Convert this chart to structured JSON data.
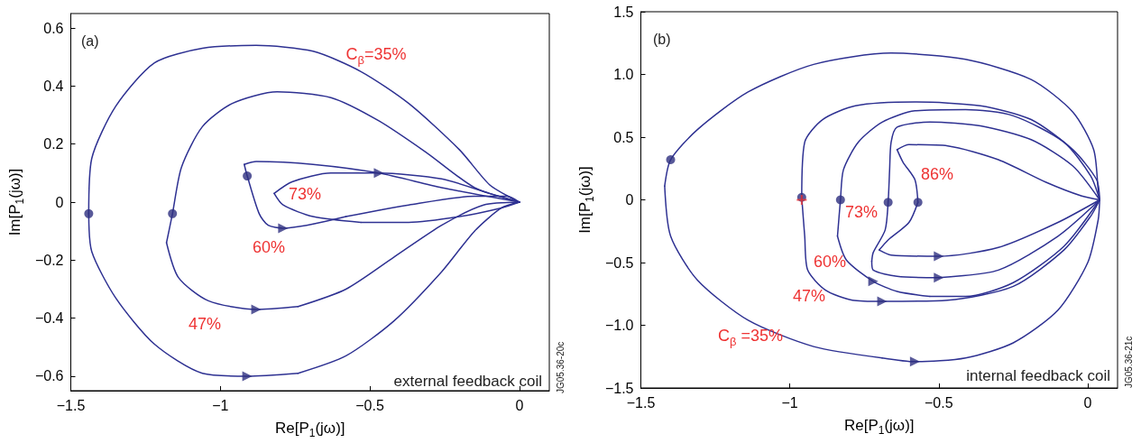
{
  "chart_data": [
    {
      "type": "line",
      "xlabel": "Re[P$_{1}$(jω)]",
      "ylabel": "Im[P$_{1}$(jω)]",
      "xlim": [
        -1.5,
        0.1
      ],
      "xticks": [
        {
          "value": -1.5,
          "label": "−1.5"
        },
        {
          "value": -1,
          "label": "−1"
        },
        {
          "value": -0.5,
          "label": "−0.5"
        },
        0
      ],
      "ylim": [
        -0.65,
        0.65
      ],
      "yticks": [
        {
          "value": -0.6,
          "label": "−0.6"
        },
        {
          "value": -0.4,
          "label": "−0.4"
        },
        {
          "value": -0.2,
          "label": "−0.2"
        },
        0,
        0.2,
        0.4,
        0.6
      ],
      "series": [
        {
          "color": "#2e3192",
          "x": [
            -1.44,
            -1.43,
            -1.35,
            -1.22,
            -1.06,
            -0.91,
            -0.74
          ],
          "values": [
            -0.04,
            -0.17,
            -0.33,
            -0.49,
            -0.59,
            -0.6,
            -0.59
          ]
        },
        {
          "color": "#2e3192",
          "x": [
            -0.74,
            -0.58,
            -0.42,
            -0.26,
            -0.15,
            -0.06,
            0
          ],
          "values": [
            -0.59,
            -0.53,
            -0.41,
            -0.24,
            -0.1,
            -0.02,
            0
          ]
        },
        {
          "color": "#2e3192",
          "x": [
            -1.44,
            -1.43,
            -1.35,
            -1.22,
            -1.06,
            -0.88,
            -0.69,
            -0.53,
            -0.37,
            -0.2,
            -0.1,
            -0.02,
            0
          ],
          "values": [
            -0.04,
            0.15,
            0.33,
            0.48,
            0.53,
            0.54,
            0.52,
            0.45,
            0.34,
            0.18,
            0.06,
            0.01,
            0
          ]
        },
        {
          "color": "#2e3192",
          "x": [
            -1.18,
            -1.16,
            -1.13,
            -1.06,
            -0.96,
            -0.81,
            -0.63,
            -0.47,
            -0.31,
            -0.15,
            0
          ],
          "values": [
            -0.14,
            -0.04,
            0.12,
            0.26,
            0.34,
            0.38,
            0.36,
            0.28,
            0.17,
            0.05,
            0
          ]
        },
        {
          "color": "#2e3192",
          "x": [
            -1.18,
            -1.14,
            -1.04,
            -0.88,
            -0.74
          ],
          "values": [
            -0.14,
            -0.26,
            -0.34,
            -0.37,
            -0.36
          ]
        },
        {
          "color": "#2e3192",
          "x": [
            -0.74,
            -0.58,
            -0.42,
            -0.26,
            -0.12,
            0
          ],
          "values": [
            -0.36,
            -0.3,
            -0.19,
            -0.08,
            -0.01,
            0
          ]
        },
        {
          "color": "#2e3192",
          "x": [
            -0.92,
            -0.91,
            -0.87,
            -0.84,
            -0.79,
            -0.58
          ],
          "values": [
            0.13,
            0.09,
            -0.04,
            -0.08,
            -0.09,
            -0.05
          ]
        },
        {
          "color": "#2e3192",
          "x": [
            -0.58,
            -0.37,
            -0.15,
            -0.04,
            0
          ],
          "values": [
            -0.05,
            -0.01,
            0.02,
            0.02,
            0
          ]
        },
        {
          "color": "#2e3192",
          "x": [
            -0.92,
            -0.88,
            -0.69,
            -0.47,
            -0.26,
            0
          ],
          "values": [
            0.13,
            0.14,
            0.13,
            0.1,
            0.05,
            0
          ]
        },
        {
          "color": "#2e3192",
          "x": [
            -0.82,
            -0.79,
            -0.69,
            -0.53
          ],
          "values": [
            0.03,
            -0.01,
            -0.05,
            -0.07
          ]
        },
        {
          "color": "#2e3192",
          "x": [
            -0.53,
            -0.37,
            -0.2,
            -0.06,
            0
          ],
          "values": [
            -0.07,
            -0.07,
            -0.05,
            -0.02,
            0
          ]
        },
        {
          "color": "#2e3192",
          "x": [
            -0.82,
            -0.76,
            -0.63,
            -0.47,
            -0.26,
            -0.1,
            0
          ],
          "values": [
            0.03,
            0.07,
            0.1,
            0.1,
            0.08,
            0.03,
            0
          ]
        },
        {
          "type": "scatter",
          "marker": "circle",
          "color": "#2e3080",
          "x": [
            -1.44,
            -1.16,
            -0.91
          ],
          "values": [
            -0.04,
            -0.04,
            0.09
          ]
        },
        {
          "type": "scatter",
          "marker": "triangle",
          "color": "#2e3080",
          "x": [
            -0.91,
            -0.88,
            -0.79,
            -0.47
          ],
          "values": [
            -0.6,
            -0.37,
            -0.09,
            0.1
          ]
        }
      ],
      "annotations": [
        "(a)",
        "external feedback coil",
        "JG05.36-20c",
        "C$_{β}$=35%",
        "73%",
        "60%",
        "47%"
      ]
    },
    {
      "type": "line",
      "xlabel": "Re[P$_{1}$(jω)]",
      "ylabel": "Im[P$_{1}$(jω)]",
      "xlim": [
        -1.5,
        0.1
      ],
      "xticks": [
        {
          "value": -1.5,
          "label": "−1.5"
        },
        {
          "value": -1,
          "label": "−1"
        },
        {
          "value": -0.5,
          "label": "−0.5"
        },
        0
      ],
      "ylim": [
        -1.5,
        1.5
      ],
      "yticks": [
        {
          "value": -1.5,
          "label": "−1.5"
        },
        {
          "value": -1,
          "label": "−1.0"
        },
        {
          "value": -0.5,
          "label": "−0.5"
        },
        0,
        0.5,
        {
          "value": 1,
          "label": "1.0"
        },
        1.5
      ],
      "series": [
        {
          "color": "#2e3192",
          "x": [
            -1.42,
            -1.4,
            -1.31,
            -1.14,
            -0.92,
            -0.66,
            -0.41,
            -0.19,
            -0.05,
            0.02,
            0.035,
            0.04
          ],
          "values": [
            0.11,
            0.32,
            0.56,
            0.86,
            1.08,
            1.17,
            1.12,
            0.96,
            0.7,
            0.4,
            0.08,
            0
          ]
        },
        {
          "color": "#2e3192",
          "x": [
            -1.42,
            -1.4,
            -1.31,
            -1.14,
            -0.92,
            -0.69
          ],
          "values": [
            0.11,
            -0.29,
            -0.64,
            -0.96,
            -1.17,
            -1.26
          ]
        },
        {
          "color": "#2e3192",
          "x": [
            -0.69,
            -0.58,
            -0.41,
            -0.25,
            -0.1,
            0.0,
            0.035,
            0.04
          ],
          "values": [
            -1.26,
            -1.29,
            -1.26,
            -1.14,
            -0.88,
            -0.5,
            -0.16,
            0
          ]
        },
        {
          "color": "#2e3192",
          "x": [
            -0.96,
            -0.95,
            -0.89,
            -0.78,
            -0.58,
            -0.36,
            -0.19,
            -0.05,
            0.03,
            0.04
          ],
          "values": [
            0.02,
            0.46,
            0.64,
            0.75,
            0.78,
            0.75,
            0.64,
            0.4,
            0.16,
            0
          ]
        },
        {
          "color": "#2e3192",
          "x": [
            -0.96,
            -0.95,
            -0.94,
            -0.88,
            -0.79,
            -0.69
          ],
          "values": [
            0.02,
            -0.29,
            -0.56,
            -0.72,
            -0.8,
            -0.81
          ]
        },
        {
          "color": "#2e3192",
          "x": [
            -0.69,
            -0.47,
            -0.25,
            -0.08,
            0.01,
            0.04
          ],
          "values": [
            -0.81,
            -0.8,
            -0.69,
            -0.4,
            -0.13,
            0
          ]
        },
        {
          "color": "#2e3192",
          "x": [
            -0.84,
            -0.83,
            -0.82,
            -0.77,
            -0.69,
            -0.58,
            -0.41,
            -0.25,
            -0.08,
            0.01,
            0.04
          ],
          "values": [
            -0.29,
            0,
            0.24,
            0.46,
            0.62,
            0.71,
            0.72,
            0.67,
            0.46,
            0.19,
            0
          ]
        },
        {
          "color": "#2e3192",
          "x": [
            -0.84,
            -0.81,
            -0.72,
            -0.64,
            -0.53
          ],
          "values": [
            -0.29,
            -0.48,
            -0.65,
            -0.73,
            -0.77
          ]
        },
        {
          "color": "#2e3192",
          "x": [
            -0.53,
            -0.41,
            -0.25,
            -0.08,
            0.04
          ],
          "values": [
            -0.77,
            -0.77,
            -0.66,
            -0.37,
            0
          ]
        },
        {
          "color": "#2e3192",
          "x": [
            -0.725,
            -0.72,
            -0.68,
            -0.67,
            -0.665,
            -0.66,
            -0.64,
            -0.53,
            -0.36,
            -0.19,
            -0.05,
            0.04
          ],
          "values": [
            -0.49,
            -0.42,
            -0.24,
            -0.02,
            0.24,
            0.46,
            0.58,
            0.62,
            0.59,
            0.48,
            0.27,
            0
          ]
        },
        {
          "color": "#2e3192",
          "x": [
            -0.725,
            -0.72,
            -0.64,
            -0.5
          ],
          "values": [
            -0.49,
            -0.56,
            -0.61,
            -0.62
          ]
        },
        {
          "color": "#2e3192",
          "x": [
            -0.5,
            -0.3,
            -0.1,
            0.04
          ],
          "values": [
            -0.62,
            -0.56,
            -0.29,
            0
          ]
        },
        {
          "color": "#2e3192",
          "x": [
            -0.7,
            -0.67,
            -0.6,
            -0.57
          ],
          "values": [
            -0.4,
            -0.32,
            -0.18,
            -0.02
          ]
        },
        {
          "color": "#2e3192",
          "x": [
            -0.64,
            -0.62,
            -0.58,
            -0.57
          ],
          "values": [
            0.4,
            0.3,
            0.16,
            -0.02
          ]
        },
        {
          "color": "#2e3192",
          "x": [
            -0.64,
            -0.6,
            -0.47,
            -0.3,
            -0.14,
            -0.02,
            0.04
          ],
          "values": [
            0.4,
            0.44,
            0.43,
            0.32,
            0.14,
            0.03,
            0
          ]
        },
        {
          "color": "#2e3192",
          "x": [
            -0.7,
            -0.66,
            -0.5,
            -0.3,
            -0.1,
            0.04
          ],
          "values": [
            -0.4,
            -0.44,
            -0.45,
            -0.38,
            -0.18,
            0
          ]
        },
        {
          "type": "scatter",
          "marker": "circle",
          "color": "#2e3080",
          "x": [
            -1.4,
            -0.96,
            -0.83,
            -0.67,
            -0.57
          ],
          "values": [
            0.32,
            0.02,
            0,
            -0.02,
            -0.02
          ]
        },
        {
          "type": "scatter",
          "marker": "triangle",
          "color": "#2e3080",
          "x": [
            -0.58,
            -0.69,
            -0.72,
            -0.5,
            -0.5
          ],
          "values": [
            -1.29,
            -0.81,
            -0.65,
            -0.62,
            -0.45
          ]
        },
        {
          "type": "scatter",
          "marker": "cross",
          "color": "#ee3333",
          "x": [
            -0.96
          ],
          "values": [
            0
          ]
        }
      ],
      "annotations": [
        "(b)",
        "internal feedback coil",
        "JG05.36-21c",
        "86%",
        "73%",
        "60%",
        "47%",
        "C$_{β}$ =35%"
      ]
    }
  ]
}
